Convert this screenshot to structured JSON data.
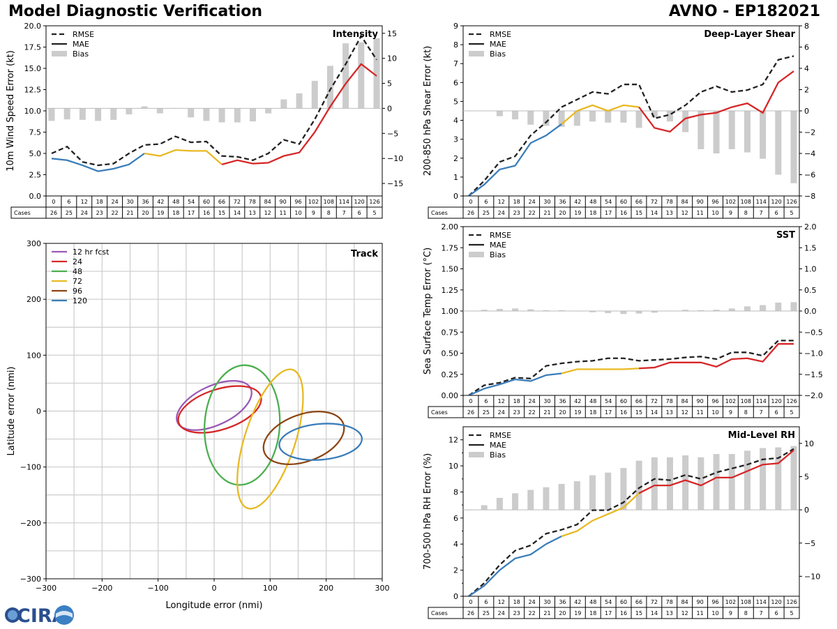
{
  "header": {
    "title_left": "Model Diagnostic Verification",
    "title_right": "AVNO - EP182021"
  },
  "logo": {
    "text": "CIRA"
  },
  "colors": {
    "rmse": "#222222",
    "mae": "#222222",
    "bias": "#cccccc",
    "seg_blue": "#3a7db9",
    "seg_yellow": "#e8b923",
    "seg_red": "#d62728",
    "track": {
      "12": "#9b59b6",
      "24": "#d62728",
      "48": "#4caf50",
      "72": "#e8b923",
      "96": "#8b4513",
      "120": "#3a7db9"
    }
  },
  "table": {
    "hours": [
      "0",
      "6",
      "12",
      "18",
      "24",
      "30",
      "36",
      "42",
      "48",
      "54",
      "60",
      "66",
      "72",
      "78",
      "84",
      "90",
      "96",
      "102",
      "108",
      "114",
      "120",
      "126"
    ],
    "cases": [
      "26",
      "25",
      "24",
      "23",
      "22",
      "21",
      "20",
      "19",
      "18",
      "17",
      "16",
      "15",
      "14",
      "13",
      "12",
      "11",
      "10",
      "9",
      "8",
      "7",
      "6",
      "5"
    ],
    "cases_label": "Cases"
  },
  "chart_data": [
    {
      "type": "line",
      "id": "intensity",
      "title": "Intensity",
      "ylabel": "10m Wind Speed Error (kt)",
      "ylim": [
        0,
        20
      ],
      "yticks": [
        "0.0",
        "2.5",
        "5.0",
        "7.5",
        "10.0",
        "12.5",
        "15.0",
        "17.5",
        "20.0"
      ],
      "y2lim": [
        -17.5,
        16.5
      ],
      "y2ticks": [
        "−15",
        "−10",
        "−5",
        "0",
        "5",
        "10",
        "15"
      ],
      "legend": [
        "RMSE",
        "MAE",
        "Bias"
      ],
      "rmse": [
        5.0,
        5.8,
        4.0,
        3.6,
        3.8,
        5.0,
        6.0,
        6.1,
        7.0,
        6.3,
        6.4,
        4.7,
        4.6,
        4.2,
        5.0,
        6.6,
        6.1,
        9.0,
        12.5,
        15.5,
        18.8,
        16.0
      ],
      "mae": [
        4.4,
        4.2,
        3.6,
        2.9,
        3.2,
        3.7,
        5.0,
        4.7,
        5.4,
        5.3,
        5.3,
        3.7,
        4.2,
        3.8,
        3.9,
        4.7,
        5.1,
        7.5,
        10.5,
        13.2,
        15.5,
        14.1
      ],
      "bias": [
        -2.5,
        -2.2,
        -2.3,
        -2.5,
        -2.3,
        -1.2,
        0.4,
        -1.0,
        0.0,
        -1.8,
        -2.5,
        -2.8,
        -2.8,
        -2.6,
        -1.0,
        1.8,
        3.0,
        5.5,
        8.5,
        13.0,
        13.2,
        14.0
      ]
    },
    {
      "type": "line",
      "id": "shear",
      "title": "Deep-Layer Shear",
      "ylabel": "200-850 hPa Shear Error (kt)",
      "ylim": [
        0,
        9
      ],
      "yticks": [
        "0",
        "1",
        "2",
        "3",
        "4",
        "5",
        "6",
        "7",
        "8",
        "9"
      ],
      "y2lim": [
        -8,
        8
      ],
      "y2ticks": [
        "−8",
        "−6",
        "−4",
        "−2",
        "0",
        "2",
        "4",
        "6",
        "8"
      ],
      "legend": [
        "RMSE",
        "MAE",
        "Bias"
      ],
      "rmse": [
        0.0,
        0.8,
        1.8,
        2.1,
        3.2,
        3.9,
        4.7,
        5.1,
        5.5,
        5.4,
        5.9,
        5.9,
        4.1,
        4.3,
        4.8,
        5.5,
        5.8,
        5.5,
        5.6,
        5.9,
        7.2,
        7.4
      ],
      "mae": [
        0.0,
        0.6,
        1.4,
        1.6,
        2.8,
        3.2,
        3.8,
        4.5,
        4.8,
        4.5,
        4.8,
        4.7,
        3.6,
        3.4,
        4.1,
        4.3,
        4.4,
        4.7,
        4.9,
        4.4,
        6.0,
        6.6
      ],
      "bias": [
        0.0,
        0.0,
        -0.5,
        -0.8,
        -1.3,
        -1.4,
        -1.5,
        -1.4,
        -1.0,
        -1.1,
        -1.1,
        -1.6,
        -0.6,
        -1.0,
        -2.0,
        -3.6,
        -4.0,
        -3.6,
        -3.9,
        -4.5,
        -6.0,
        -6.8
      ]
    },
    {
      "type": "line",
      "id": "sst",
      "title": "SST",
      "ylabel": "Sea Surface Temp Error (°C)",
      "ylim": [
        0,
        2
      ],
      "yticks": [
        "0.00",
        "0.25",
        "0.50",
        "0.75",
        "1.00",
        "1.25",
        "1.50",
        "1.75",
        "2.00"
      ],
      "y2lim": [
        -2,
        2
      ],
      "y2ticks": [
        "−2.0",
        "−1.5",
        "−1.0",
        "−0.5",
        "0.0",
        "0.5",
        "1.0",
        "1.5",
        "2.0"
      ],
      "legend": [
        "RMSE",
        "MAE",
        "Bias"
      ],
      "rmse": [
        0.0,
        0.12,
        0.15,
        0.21,
        0.2,
        0.35,
        0.38,
        0.4,
        0.41,
        0.44,
        0.44,
        0.41,
        0.42,
        0.43,
        0.45,
        0.46,
        0.43,
        0.51,
        0.51,
        0.47,
        0.65,
        0.65
      ],
      "mae": [
        0.0,
        0.08,
        0.13,
        0.19,
        0.17,
        0.24,
        0.26,
        0.31,
        0.31,
        0.31,
        0.31,
        0.32,
        0.33,
        0.39,
        0.39,
        0.39,
        0.34,
        0.43,
        0.44,
        0.4,
        0.61,
        0.61
      ],
      "bias": [
        0.0,
        0.03,
        0.05,
        0.06,
        0.04,
        0.02,
        0.02,
        -0.01,
        -0.03,
        -0.05,
        -0.07,
        -0.06,
        -0.04,
        0.01,
        0.03,
        0.02,
        0.03,
        0.06,
        0.11,
        0.14,
        0.2,
        0.21
      ]
    },
    {
      "type": "line",
      "id": "rh",
      "title": "Mid-Level RH",
      "ylabel": "700-500 hPa RH Error (%)",
      "ylim": [
        0,
        13
      ],
      "yticks": [
        "0",
        "2",
        "4",
        "6",
        "8",
        "10",
        "12"
      ],
      "y2lim": [
        -13,
        12.5
      ],
      "y2ticks": [
        "−10",
        "−5",
        "0",
        "5",
        "10"
      ],
      "legend": [
        "RMSE",
        "MAE",
        "Bias"
      ],
      "rmse": [
        0.0,
        1.0,
        2.4,
        3.5,
        3.9,
        4.8,
        5.1,
        5.5,
        6.6,
        6.6,
        7.2,
        8.3,
        9.0,
        8.9,
        9.3,
        9.0,
        9.5,
        9.8,
        10.1,
        10.5,
        10.6,
        11.3
      ],
      "mae": [
        0.0,
        0.8,
        2.0,
        2.9,
        3.2,
        4.0,
        4.6,
        5.0,
        5.8,
        6.3,
        6.8,
        7.9,
        8.5,
        8.5,
        8.9,
        8.5,
        9.1,
        9.1,
        9.6,
        10.1,
        10.2,
        11.2
      ],
      "bias": [
        0.0,
        0.7,
        1.8,
        2.5,
        3.0,
        3.4,
        3.9,
        4.3,
        5.2,
        5.6,
        6.3,
        7.4,
        7.9,
        7.9,
        8.2,
        7.9,
        8.4,
        8.4,
        8.9,
        9.3,
        9.4,
        9.6
      ]
    },
    {
      "type": "scatter",
      "id": "track",
      "title": "Track",
      "xlabel": "Longitude error (nmi)",
      "ylabel": "Latitude error (nmi)",
      "xlim": [
        -300,
        300
      ],
      "ylim": [
        -300,
        300
      ],
      "xticks": [
        "−300",
        "−200",
        "−100",
        "0",
        "100",
        "200",
        "300"
      ],
      "yticks": [
        "−300",
        "−200",
        "−100",
        "0",
        "100",
        "200",
        "300"
      ],
      "ellipses": [
        {
          "label": "12 hr fcst",
          "key": "12",
          "cx": 0,
          "cy": 10,
          "rx": 72,
          "ry": 35,
          "angle": -25
        },
        {
          "label": "24",
          "key": "24",
          "cx": 10,
          "cy": 3,
          "rx": 77,
          "ry": 36,
          "angle": -18
        },
        {
          "label": "48",
          "key": "48",
          "cx": 50,
          "cy": -25,
          "rx": 67,
          "ry": 107,
          "angle": 4
        },
        {
          "label": "72",
          "key": "72",
          "cx": 100,
          "cy": -50,
          "rx": 45,
          "ry": 130,
          "angle": 18
        },
        {
          "label": "96",
          "key": "96",
          "cx": 160,
          "cy": -48,
          "rx": 75,
          "ry": 42,
          "angle": -20
        },
        {
          "label": "120",
          "key": "120",
          "cx": 190,
          "cy": -55,
          "rx": 74,
          "ry": 32,
          "angle": -5
        }
      ]
    }
  ]
}
